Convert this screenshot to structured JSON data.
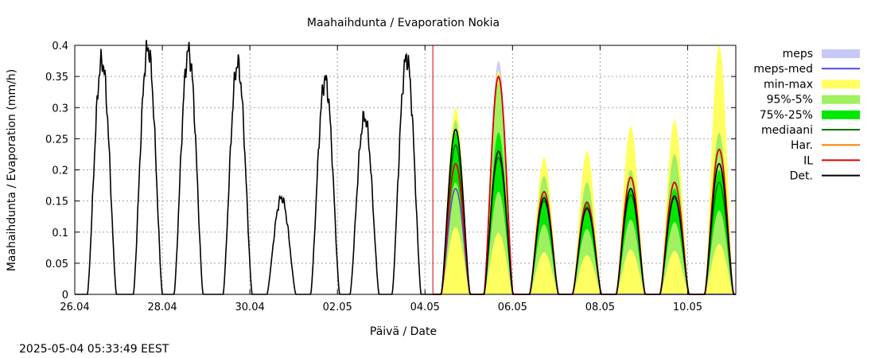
{
  "chart_data": {
    "type": "line",
    "title": "Maahaihdunta / Evaporation  Nokia",
    "xlabel": "Päivä / Date",
    "ylabel": "Maahaihdunta / Evaporation (mm/h)",
    "timestamp": "2025-05-04 05:33:49 EEST",
    "xlim_days": [
      0,
      15.1
    ],
    "ylim": [
      0,
      0.4
    ],
    "grid": true,
    "legend_placement": "right",
    "forecast_start_day": 8.18,
    "x_ticks": [
      {
        "day": 0,
        "label": "26.04"
      },
      {
        "day": 2,
        "label": "28.04"
      },
      {
        "day": 4,
        "label": "30.04"
      },
      {
        "day": 6,
        "label": "02.05"
      },
      {
        "day": 8,
        "label": "04.05"
      },
      {
        "day": 10,
        "label": "06.05"
      },
      {
        "day": 12,
        "label": "08.05"
      },
      {
        "day": 14,
        "label": "10.05"
      }
    ],
    "y_ticks": [
      {
        "value": 0,
        "label": "0"
      },
      {
        "value": 0.05,
        "label": "0.05"
      },
      {
        "value": 0.1,
        "label": "0.1"
      },
      {
        "value": 0.15,
        "label": "0.15"
      },
      {
        "value": 0.2,
        "label": "0.2"
      },
      {
        "value": 0.25,
        "label": "0.25"
      },
      {
        "value": 0.3,
        "label": "0.3"
      },
      {
        "value": 0.35,
        "label": "0.35"
      },
      {
        "value": 0.4,
        "label": "0.4"
      }
    ],
    "legend": [
      {
        "label": "meps",
        "kind": "band",
        "color": "#c8c8f8"
      },
      {
        "label": "meps-med",
        "kind": "line",
        "color": "#4848d8"
      },
      {
        "label": "min-max",
        "kind": "band",
        "color": "#ffff60"
      },
      {
        "label": "95%-5%",
        "kind": "band",
        "color": "#a0f060"
      },
      {
        "label": "75%-25%",
        "kind": "band",
        "color": "#00e800"
      },
      {
        "label": "mediaani",
        "kind": "line",
        "color": "#007000"
      },
      {
        "label": "Har.",
        "kind": "line",
        "color": "#ff8000"
      },
      {
        "label": "IL",
        "kind": "line",
        "color": "#e00000"
      },
      {
        "label": "Det.",
        "kind": "line",
        "color": "#000000"
      }
    ],
    "observed_peaks": [
      {
        "day": 0.62,
        "value": 0.375
      },
      {
        "day": 1.67,
        "value": 0.395
      },
      {
        "day": 2.6,
        "value": 0.39
      },
      {
        "day": 3.72,
        "value": 0.37
      },
      {
        "day": 4.72,
        "value": 0.155
      },
      {
        "day": 5.72,
        "value": 0.345
      },
      {
        "day": 6.62,
        "value": 0.285
      },
      {
        "day": 7.58,
        "value": 0.38
      }
    ],
    "forecast_days": [
      {
        "day": 8.7,
        "minmax": 0.3,
        "p95": 0.28,
        "p75": 0.26,
        "median": 0.24,
        "il": 0.21,
        "det": 0.265,
        "meps": 0.19,
        "meps_med": 0.17
      },
      {
        "day": 9.68,
        "minmax": 0.36,
        "p95": 0.34,
        "p75": 0.26,
        "median": 0.22,
        "il": 0.35,
        "det": 0.23,
        "meps": 0.375,
        "meps_med": 0.35
      },
      {
        "day": 10.72,
        "minmax": 0.22,
        "p95": 0.19,
        "p75": 0.16,
        "median": 0.15,
        "il": 0.165,
        "det": 0.155,
        "meps": 0.0,
        "meps_med": 0.0
      },
      {
        "day": 11.7,
        "minmax": 0.23,
        "p95": 0.18,
        "p75": 0.15,
        "median": 0.14,
        "il": 0.148,
        "det": 0.138,
        "meps": 0.0,
        "meps_med": 0.0
      },
      {
        "day": 12.7,
        "minmax": 0.27,
        "p95": 0.2,
        "p75": 0.17,
        "median": 0.16,
        "il": 0.188,
        "det": 0.17,
        "meps": 0.0,
        "meps_med": 0.0
      },
      {
        "day": 13.7,
        "minmax": 0.28,
        "p95": 0.225,
        "p75": 0.17,
        "median": 0.155,
        "il": 0.18,
        "det": 0.158,
        "meps": 0.0,
        "meps_med": 0.0
      },
      {
        "day": 14.72,
        "minmax": 0.4,
        "p95": 0.26,
        "p75": 0.2,
        "median": 0.18,
        "il": 0.233,
        "det": 0.21,
        "meps": 0.0,
        "meps_med": 0.0
      }
    ]
  }
}
